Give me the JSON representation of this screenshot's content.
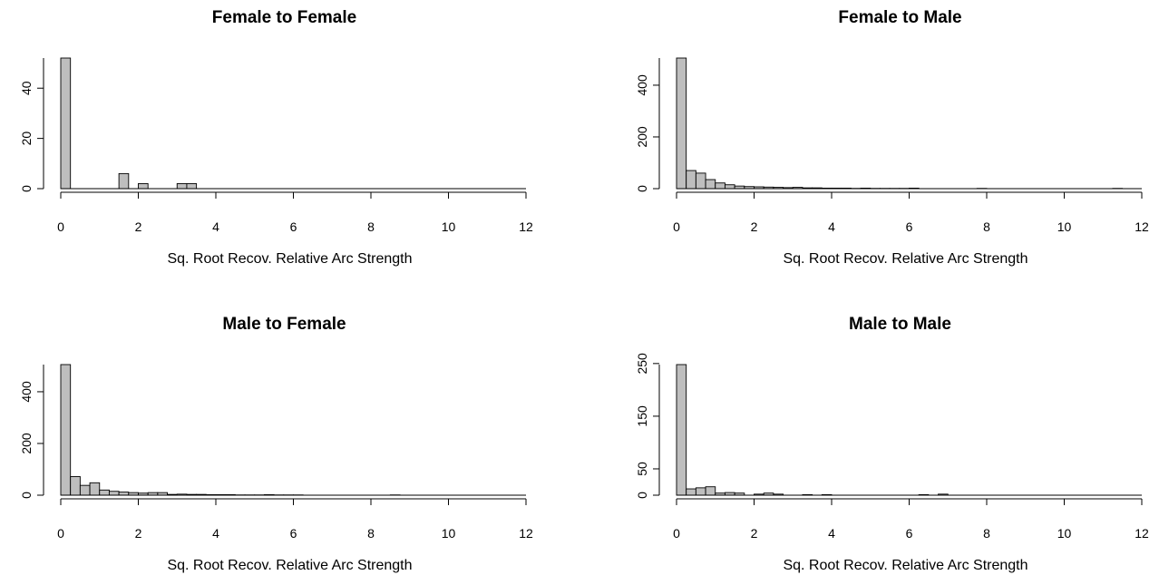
{
  "chart_data": [
    {
      "type": "bar",
      "title": "Female to Female",
      "xlabel": "Sq. Root Recov. Relative Arc Strength",
      "ylabel": "",
      "xlim": [
        0,
        12
      ],
      "ylim": [
        0,
        52
      ],
      "xticks": [
        "0",
        "2",
        "4",
        "6",
        "8",
        "10",
        "12"
      ],
      "yticks": [
        "0",
        "20",
        "40"
      ],
      "bin_width": 0.25,
      "bin_start": 0,
      "values": [
        52,
        0,
        0,
        0,
        0,
        0,
        6,
        0,
        2,
        0,
        0,
        0,
        2,
        2
      ]
    },
    {
      "type": "bar",
      "title": "Female to Male",
      "xlabel": "Sq. Root Recov. Relative Arc Strength",
      "ylabel": "",
      "xlim": [
        0,
        12
      ],
      "ylim": [
        0,
        505
      ],
      "xticks": [
        "0",
        "2",
        "4",
        "6",
        "8",
        "10",
        "12"
      ],
      "yticks": [
        "0",
        "200",
        "400"
      ],
      "bin_width": 0.25,
      "bin_start": 0,
      "values": [
        505,
        70,
        60,
        35,
        22,
        15,
        10,
        8,
        7,
        6,
        5,
        4,
        5,
        3,
        3,
        2,
        2,
        2,
        1,
        2,
        1,
        1,
        1,
        1,
        2,
        0,
        0,
        0,
        0,
        0,
        0,
        1,
        0,
        0,
        0,
        0,
        0,
        0,
        0,
        0,
        0,
        0,
        0,
        0,
        0,
        1
      ]
    },
    {
      "type": "bar",
      "title": "Male to Female",
      "xlabel": "Sq. Root Recov. Relative Arc Strength",
      "ylabel": "",
      "xlim": [
        0,
        12
      ],
      "ylim": [
        0,
        505
      ],
      "xticks": [
        "0",
        "2",
        "4",
        "6",
        "8",
        "10",
        "12"
      ],
      "yticks": [
        "0",
        "200",
        "400"
      ],
      "bin_width": 0.25,
      "bin_start": 0,
      "values": [
        505,
        72,
        38,
        48,
        20,
        15,
        12,
        10,
        8,
        10,
        10,
        3,
        4,
        3,
        3,
        2,
        2,
        2,
        1,
        1,
        1,
        2,
        1,
        1,
        1,
        0,
        0,
        0,
        0,
        0,
        0,
        0,
        0,
        0,
        1
      ]
    },
    {
      "type": "bar",
      "title": "Male to Male",
      "xlabel": "Sq. Root Recov. Relative Arc Strength",
      "ylabel": "",
      "xlim": [
        0,
        12
      ],
      "ylim": [
        0,
        248
      ],
      "xticks": [
        "0",
        "2",
        "4",
        "6",
        "8",
        "10",
        "12"
      ],
      "yticks": [
        "0",
        "50",
        "150",
        "250"
      ],
      "bin_width": 0.25,
      "bin_start": 0,
      "values": [
        248,
        12,
        14,
        16,
        4,
        5,
        4,
        0,
        2,
        4,
        2,
        0,
        0,
        1,
        0,
        1,
        0,
        0,
        0,
        0,
        0,
        0,
        0,
        0,
        0,
        1,
        0,
        2,
        0,
        0,
        0,
        0
      ]
    }
  ]
}
